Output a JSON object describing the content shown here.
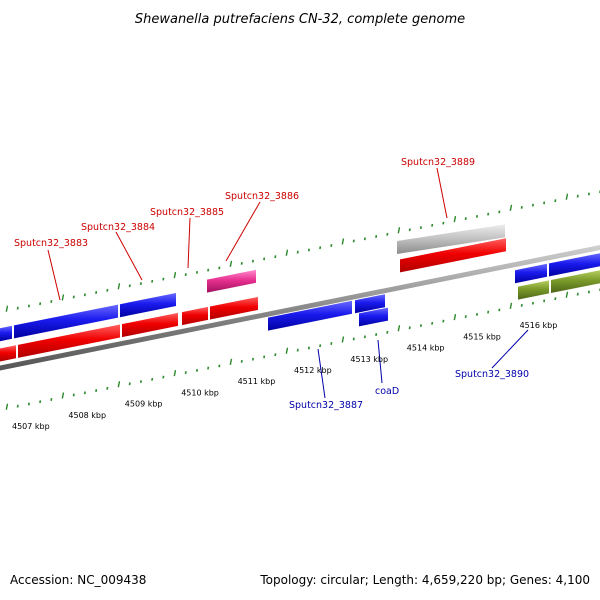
{
  "title": "Shewanella putrefaciens CN-32, complete genome",
  "footer": {
    "accession": "Accession: NC_009438",
    "summary": "Topology: circular; Length: 4,659,220 bp; Genes: 4,100"
  },
  "scale_labels": [
    "4507 kbp",
    "4508 kbp",
    "4509 kbp",
    "4510 kbp",
    "4511 kbp",
    "4512 kbp",
    "4513 kbp",
    "4514 kbp",
    "4515 kbp",
    "4516 kbp"
  ],
  "gene_labels": {
    "sputcn32_3883": "Sputcn32_3883",
    "sputcn32_3884": "Sputcn32_3884",
    "sputcn32_3885": "Sputcn32_3885",
    "sputcn32_3886": "Sputcn32_3886",
    "sputcn32_3889": "Sputcn32_3889",
    "sputcn32_3887": "Sputcn32_3887",
    "coaD": "coaD",
    "sputcn32_3890": "Sputcn32_3890"
  },
  "colors": {
    "forward_cds": "#e00000",
    "reverse_cds": "#1010e0",
    "forward_label": "#cc0000",
    "reverse_label": "#0000aa",
    "tick": "#2a8a2a",
    "backbone": "#888888",
    "pseudo": "#c0c0c0",
    "pink": "#e83090",
    "olive": "#7a9a2a"
  }
}
